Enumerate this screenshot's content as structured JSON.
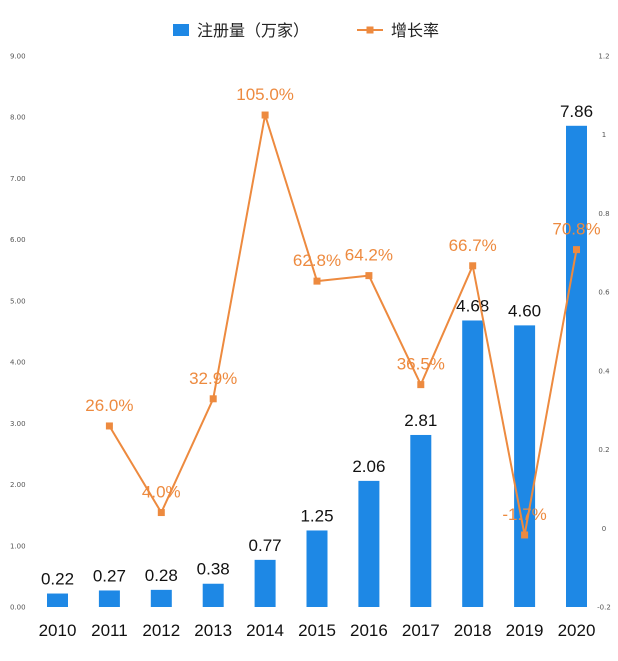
{
  "chart_data": {
    "type": "bar+line",
    "categories": [
      "2010",
      "2011",
      "2012",
      "2013",
      "2014",
      "2015",
      "2016",
      "2017",
      "2018",
      "2019",
      "2020"
    ],
    "series": [
      {
        "name": "注册量（万家）",
        "type": "bar",
        "axis": "left",
        "color": "#1e88e5",
        "values": [
          0.22,
          0.27,
          0.28,
          0.38,
          0.77,
          1.25,
          2.06,
          2.81,
          4.68,
          4.6,
          7.86
        ],
        "labels": [
          "0.22",
          "0.27",
          "0.28",
          "0.38",
          "0.77",
          "1.25",
          "2.06",
          "2.81",
          "4.68",
          "4.60",
          "7.86"
        ]
      },
      {
        "name": "增长率",
        "type": "line",
        "axis": "right",
        "color": "#ed8a3f",
        "values": [
          null,
          0.26,
          0.04,
          0.329,
          1.05,
          0.628,
          0.642,
          0.365,
          0.667,
          -0.017,
          0.708
        ],
        "labels": [
          null,
          "26.0%",
          "4.0%",
          "32.9%",
          "105.0%",
          "62.8%",
          "64.2%",
          "36.5%",
          "66.7%",
          "-1.7%",
          "70.8%"
        ]
      }
    ],
    "y_left": {
      "min": 0,
      "max": 9,
      "ticks": [
        "0.00",
        "1.00",
        "2.00",
        "3.00",
        "4.00",
        "5.00",
        "6.00",
        "7.00",
        "8.00",
        "9.00"
      ]
    },
    "y_right": {
      "min": -0.2,
      "max": 1.2,
      "ticks": [
        "-0.2",
        "0",
        "0.2",
        "0.4",
        "0.6",
        "0.8",
        "1",
        "1.2"
      ]
    },
    "legend_position": "top-center",
    "grid": false
  }
}
